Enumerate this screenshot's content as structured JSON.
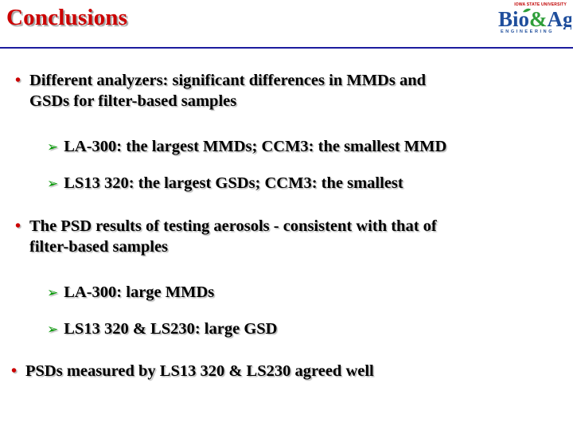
{
  "title": "Conclusions",
  "logo": {
    "university": "IOWA STATE UNIVERSITY",
    "wordmark_bio": "Bio",
    "wordmark_amp": "&",
    "wordmark_ag": "Ag",
    "subtitle": "ENGINEERING"
  },
  "bullets": [
    {
      "text": "Different analyzers: significant differences in MMDs and GSDs for filter-based samples",
      "line1": "Different analyzers: significant differences in MMDs and",
      "line2": "GSDs for filter-based samples",
      "subs": [
        "LA-300:  the largest MMDs; CCM3: the smallest MMD",
        "LS13 320: the largest GSDs; CCM3: the smallest"
      ]
    },
    {
      "text": "The PSD results of testing aerosols - consistent with that of filter-based samples",
      "line1": "The PSD results of testing aerosols - consistent with that of",
      "line2": "filter-based samples",
      "subs": [
        "LA-300: large MMDs",
        "LS13 320 & LS230: large GSD"
      ]
    },
    {
      "text": "PSDs measured by LS13 320 & LS230 agreed well",
      "line1": "PSDs measured by LS13 320 & LS230 agreed well"
    }
  ],
  "colors": {
    "title": "#cc0000",
    "rule": "#1c1c9e",
    "bullet": "#cc0000",
    "arrow": "#009900",
    "logo_green": "#2e9e3a",
    "logo_blue": "#1f4e9c"
  },
  "icons": {
    "bullet": "•",
    "sub_bullet": "arrow-icon"
  }
}
